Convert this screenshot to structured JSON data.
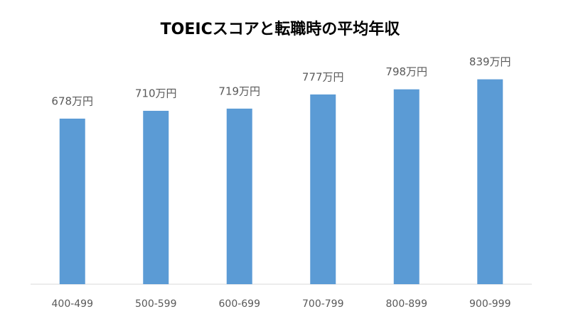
{
  "chart_data": {
    "type": "bar",
    "title": "TOEICスコアと転職時の平均年収",
    "categories": [
      "400-499",
      "500-599",
      "600-699",
      "700-799",
      "800-899",
      "900-999"
    ],
    "values": [
      678,
      710,
      719,
      777,
      798,
      839
    ],
    "value_labels": [
      "678万円",
      "710万円",
      "719万円",
      "777万円",
      "798万円",
      "839万円"
    ],
    "color": "#5b9bd5"
  }
}
